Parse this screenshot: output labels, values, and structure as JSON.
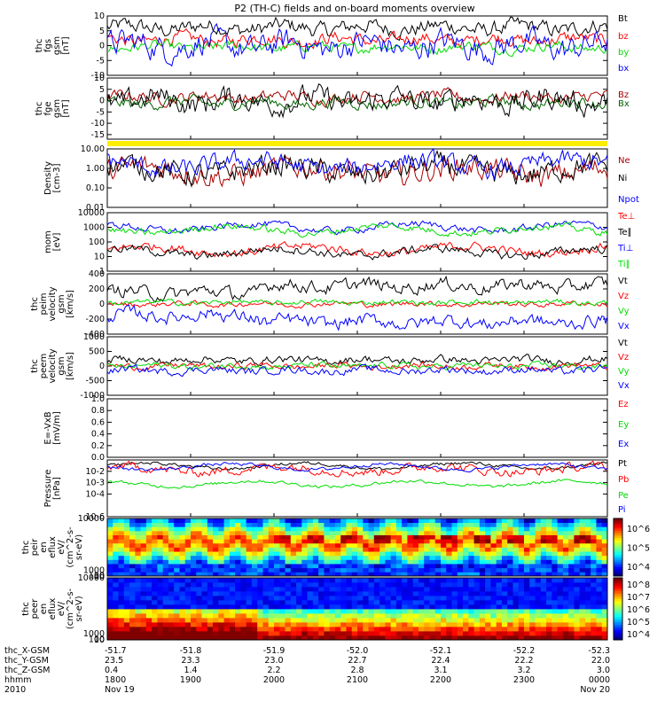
{
  "title": "P2 (TH-C) fields and on-board moments overview",
  "colors": {
    "black": "#000000",
    "red": "#ff0000",
    "green": "#00dd00",
    "blue": "#0000ff",
    "darkred": "#aa0000",
    "darkgreen": "#006600",
    "yellow": "#ffee00"
  },
  "chart_data": {
    "type": "line",
    "x_time_range": [
      "2010 Nov 19 18:00",
      "2010 Nov 20 00:00"
    ],
    "panels": [
      {
        "name": "fgs",
        "ylabel_lines": [
          "thc",
          "fgs",
          "gsm",
          "[nT]"
        ],
        "ylim": [
          -10,
          10
        ],
        "yticks": [
          -10,
          -5,
          0,
          5,
          10
        ],
        "ytick_labels": [
          "-10",
          "-5",
          "0",
          "5",
          "10"
        ],
        "series": [
          {
            "name": "Bt",
            "color": "black",
            "base": 6,
            "amp": 3
          },
          {
            "name": "bz",
            "color": "red",
            "base": 2,
            "amp": 2.5
          },
          {
            "name": "by",
            "color": "green",
            "base": -0.5,
            "amp": 2
          },
          {
            "name": "bx",
            "color": "blue",
            "base": 0,
            "amp": 5
          }
        ]
      },
      {
        "name": "fge",
        "ylabel_lines": [
          "thc",
          "fge",
          "gsm",
          "[nT]"
        ],
        "ylim": [
          -17,
          10
        ],
        "yticks": [
          -15,
          -10,
          -5,
          0,
          5,
          10
        ],
        "ytick_labels": [
          "-15",
          "-10",
          "-5",
          "0",
          "5",
          "10"
        ],
        "series": [
          {
            "name": "Bz",
            "color": "darkred",
            "base": 1.5,
            "amp": 3
          },
          {
            "name": "Bx",
            "color": "darkgreen",
            "base": -1,
            "amp": 3
          },
          {
            "name": "",
            "color": "black",
            "base": 0,
            "amp": 6
          }
        ]
      },
      {
        "name": "density",
        "log": true,
        "ylabel_lines": [
          "Density",
          "[cm-3]"
        ],
        "ylim": [
          0.01,
          10
        ],
        "yticks": [
          0.01,
          0.1,
          1,
          10
        ],
        "ytick_labels": [
          "0.01",
          "0.10",
          "1.00",
          "10.00"
        ],
        "series": [
          {
            "name": "Ne",
            "color": "darkred",
            "base": 0.7,
            "amp": 0.6
          },
          {
            "name": "Ni",
            "color": "black",
            "base": 0.8,
            "amp": 0.6
          },
          {
            "name": "Npot",
            "color": "blue",
            "base": 1.5,
            "amp": 0.5
          }
        ]
      },
      {
        "name": "temperature",
        "log": true,
        "ylabel_lines": [
          "mom",
          "[eV]"
        ],
        "ylim": [
          1,
          10000
        ],
        "yticks": [
          1,
          10,
          100,
          1000,
          10000
        ],
        "ytick_labels": [
          "1",
          "10",
          "100",
          "1000",
          "10000"
        ],
        "series": [
          {
            "name": "Te⊥",
            "color": "red",
            "base": 30,
            "amp": 0.3
          },
          {
            "name": "Te∥",
            "color": "black",
            "base": 20,
            "amp": 0.3
          },
          {
            "name": "Ti⊥",
            "color": "blue",
            "base": 1000,
            "amp": 0.25
          },
          {
            "name": "Ti∥",
            "color": "green",
            "base": 700,
            "amp": 0.25
          }
        ]
      },
      {
        "name": "peim_velocity",
        "ylabel_lines": [
          "thc",
          "peim",
          "velocity",
          "gsm",
          "[km/s]"
        ],
        "ylim": [
          -400,
          400
        ],
        "yticks": [
          -400,
          -200,
          0,
          200,
          400
        ],
        "ytick_labels": [
          "-400",
          "-200",
          "0",
          "200",
          "400"
        ],
        "series": [
          {
            "name": "Vt",
            "color": "black",
            "base": 150,
            "amp": 100
          },
          {
            "name": "Vz",
            "color": "red",
            "base": 0,
            "amp": 40
          },
          {
            "name": "Vy",
            "color": "green",
            "base": 20,
            "amp": 40
          },
          {
            "name": "Vx",
            "color": "blue",
            "base": -150,
            "amp": 100
          }
        ]
      },
      {
        "name": "peem_velocity",
        "ylabel_lines": [
          "thc",
          "peem",
          "velocity",
          "gsm",
          "[km/s]"
        ],
        "ylim": [
          -1000,
          1000
        ],
        "yticks": [
          -1000,
          -500,
          0,
          500,
          1000
        ],
        "ytick_labels": [
          "-1000",
          "-500",
          "0",
          "500",
          "1000"
        ],
        "series": [
          {
            "name": "Vt",
            "color": "black",
            "base": 200,
            "amp": 150
          },
          {
            "name": "Vz",
            "color": "red",
            "base": 0,
            "amp": 120
          },
          {
            "name": "Vy",
            "color": "green",
            "base": 0,
            "amp": 120
          },
          {
            "name": "Vx",
            "color": "blue",
            "base": -150,
            "amp": 150
          }
        ]
      },
      {
        "name": "efield",
        "ylabel_lines": [
          "E=-VxB",
          "[mV/m]"
        ],
        "ylim": [
          0,
          1
        ],
        "yticks": [
          0,
          0.2,
          0.4,
          0.6,
          0.8,
          1.0
        ],
        "ytick_labels": [
          "0.0",
          "0.2",
          "0.4",
          "0.6",
          "0.8",
          "1.0"
        ],
        "series": [
          {
            "name": "Ez",
            "color": "red"
          },
          {
            "name": "Ey",
            "color": "green"
          },
          {
            "name": "Ex",
            "color": "blue"
          }
        ]
      },
      {
        "name": "pressure",
        "log": true,
        "ylabel_lines": [
          "Pressure",
          "[nPa]"
        ],
        "ylim": [
          1e-06,
          0.1
        ],
        "yticks": [
          1e-06,
          0.0001,
          0.001,
          0.01
        ],
        "ytick_labels": [
          "10-6",
          "10-4",
          "10-3",
          "10-2"
        ],
        "series": [
          {
            "name": "Pt",
            "color": "black",
            "base": 0.03,
            "amp": 0.15
          },
          {
            "name": "Pb",
            "color": "red",
            "base": 0.015,
            "amp": 0.4
          },
          {
            "name": "Pe",
            "color": "green",
            "base": 0.0008,
            "amp": 0.15
          },
          {
            "name": "Pi",
            "color": "blue",
            "base": 0.025,
            "amp": 0.15
          }
        ]
      },
      {
        "name": "peir_eflux",
        "spectrogram": true,
        "ylabel_lines": [
          "thc",
          "peir",
          "en",
          "eflux",
          "eV/",
          "(cm^2-s-",
          "sr-eV)"
        ],
        "ylim": [
          10,
          10000
        ],
        "yticks": [
          10,
          100,
          1000,
          10000
        ],
        "ytick_labels": [
          "10",
          "100",
          "1000",
          "10000"
        ],
        "colorbar_labels": [
          "10^4",
          "10^5",
          "10^6"
        ]
      },
      {
        "name": "peer_eflux",
        "spectrogram": true,
        "ylabel_lines": [
          "thc",
          "peer",
          "en",
          "eflux",
          "eV/",
          "(cm^2-s-",
          "sr-eV)"
        ],
        "ylim": [
          10,
          10000
        ],
        "yticks": [
          10,
          100,
          1000,
          10000
        ],
        "ytick_labels": [
          "10",
          "100",
          "1000",
          "10000"
        ],
        "colorbar_labels": [
          "10^4",
          "10^5",
          "10^6",
          "10^7",
          "10^8"
        ]
      }
    ],
    "x_axis": {
      "row_labels": [
        "thc_X-GSM",
        "thc_Y-GSM",
        "thc_Z-GSM",
        "hhmm",
        "2010"
      ],
      "columns": [
        [
          "-51.7",
          "23.5",
          "0.4",
          "1800",
          "Nov 19"
        ],
        [
          "-51.8",
          "23.3",
          "1.4",
          "1900",
          ""
        ],
        [
          "-51.9",
          "23.0",
          "2.2",
          "2000",
          ""
        ],
        [
          "-52.0",
          "22.7",
          "2.8",
          "2100",
          ""
        ],
        [
          "-52.1",
          "22.4",
          "3.1",
          "2200",
          ""
        ],
        [
          "-52.2",
          "22.2",
          "3.2",
          "2300",
          ""
        ],
        [
          "-52.3",
          "22.0",
          "3.0",
          "0000",
          "Nov 20"
        ]
      ]
    }
  }
}
